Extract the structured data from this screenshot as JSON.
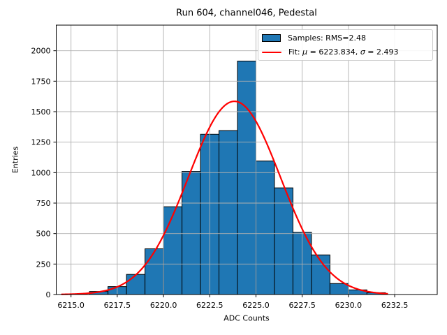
{
  "chart_data": {
    "type": "bar",
    "subtype": "histogram-with-gaussian-fit",
    "title": "Run 604, channel046, Pedestal",
    "xlabel": "ADC Counts",
    "ylabel": "Entries",
    "xlim": [
      6214.2,
      6234.8
    ],
    "ylim": [
      0,
      2210
    ],
    "xticks": [
      6215.0,
      6217.5,
      6220.0,
      6222.5,
      6225.0,
      6227.5,
      6230.0,
      6232.5
    ],
    "xtick_labels": [
      "6215.0",
      "6217.5",
      "6220.0",
      "6222.5",
      "6225.0",
      "6227.5",
      "6230.0",
      "6232.5"
    ],
    "yticks": [
      0,
      250,
      500,
      750,
      1000,
      1250,
      1500,
      1750,
      2000
    ],
    "ytick_labels": [
      "0",
      "250",
      "500",
      "750",
      "1000",
      "1250",
      "1500",
      "1750",
      "2000"
    ],
    "grid": true,
    "bin_width": 1,
    "bin_left_edges": [
      6216,
      6217,
      6218,
      6219,
      6220,
      6221,
      6222,
      6223,
      6224,
      6225,
      6226,
      6227,
      6228,
      6229,
      6230,
      6231
    ],
    "counts": [
      25,
      65,
      165,
      375,
      720,
      1010,
      1315,
      1345,
      1915,
      1095,
      875,
      510,
      325,
      90,
      38,
      15
    ],
    "fit": {
      "mu": 6223.834,
      "sigma": 2.493,
      "amplitude": 1585,
      "x_start": 6214.5,
      "x_end": 6232.1
    },
    "legend": {
      "position": "upper right",
      "samples_label": "Samples: RMS=2.48",
      "samples_rms": 2.48,
      "fit_label_parts": {
        "prefix": "Fit: ",
        "mu_symbol": "μ",
        "mu_value": " = 6223.834, ",
        "sigma_symbol": "σ",
        "sigma_value": " = 2.493"
      }
    },
    "colors": {
      "bar_fill": "#1f77b4",
      "bar_edge": "#000000",
      "fit_line": "#ff0000",
      "grid": "#b0b0b0",
      "legend_border": "#cccccc",
      "background": "#ffffff"
    }
  }
}
